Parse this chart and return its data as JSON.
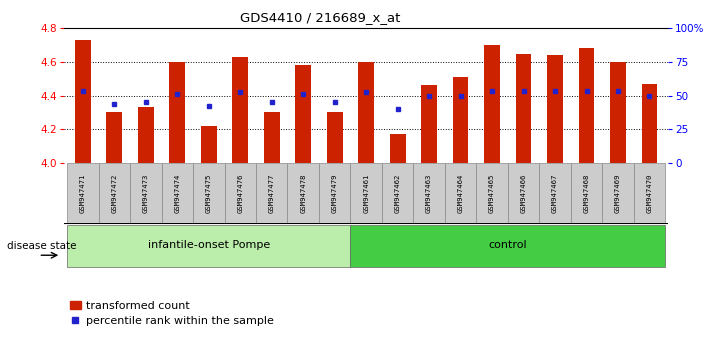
{
  "title": "GDS4410 / 216689_x_at",
  "samples": [
    "GSM947471",
    "GSM947472",
    "GSM947473",
    "GSM947474",
    "GSM947475",
    "GSM947476",
    "GSM947477",
    "GSM947478",
    "GSM947479",
    "GSM947461",
    "GSM947462",
    "GSM947463",
    "GSM947464",
    "GSM947465",
    "GSM947466",
    "GSM947467",
    "GSM947468",
    "GSM947469",
    "GSM947470"
  ],
  "bar_values": [
    4.73,
    4.3,
    4.33,
    4.6,
    4.22,
    4.63,
    4.3,
    4.58,
    4.3,
    4.6,
    4.17,
    4.46,
    4.51,
    4.7,
    4.65,
    4.64,
    4.68,
    4.6,
    4.47
  ],
  "dot_values": [
    4.43,
    4.35,
    4.36,
    4.41,
    4.34,
    4.42,
    4.36,
    4.41,
    4.36,
    4.42,
    4.32,
    4.4,
    4.4,
    4.43,
    4.43,
    4.43,
    4.43,
    4.43,
    4.4
  ],
  "group1_label": "infantile-onset Pompe",
  "group1_count": 9,
  "group2_label": "control",
  "group2_count": 10,
  "disease_state_label": "disease state",
  "ylim_left": [
    4.0,
    4.8
  ],
  "ylim_right": [
    0,
    100
  ],
  "yticks_left": [
    4.0,
    4.2,
    4.4,
    4.6,
    4.8
  ],
  "yticks_right": [
    0,
    25,
    50,
    75,
    100
  ],
  "bar_color": "#cc2200",
  "dot_color": "#2222cc",
  "group1_bg": "#bbeeaa",
  "group2_bg": "#44cc44",
  "tick_bg": "#cccccc",
  "legend_bar_label": "transformed count",
  "legend_dot_label": "percentile rank within the sample",
  "grid_lines": [
    4.2,
    4.4,
    4.6
  ],
  "bar_width": 0.5
}
